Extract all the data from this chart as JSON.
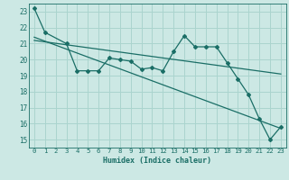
{
  "xlabel": "Humidex (Indice chaleur)",
  "bg_color": "#cce8e4",
  "grid_color": "#aad4ce",
  "line_color": "#1a6e66",
  "xlim": [
    -0.5,
    23.5
  ],
  "ylim": [
    14.5,
    23.5
  ],
  "yticks": [
    15,
    16,
    17,
    18,
    19,
    20,
    21,
    22,
    23
  ],
  "xticks": [
    0,
    1,
    2,
    3,
    4,
    5,
    6,
    7,
    8,
    9,
    10,
    11,
    12,
    13,
    14,
    15,
    16,
    17,
    18,
    19,
    20,
    21,
    22,
    23
  ],
  "main_x": [
    0,
    1,
    3,
    4,
    5,
    6,
    7,
    8,
    9,
    10,
    11,
    12,
    13,
    14,
    15,
    16,
    17,
    18,
    19,
    20,
    21,
    22,
    23
  ],
  "main_y": [
    23.2,
    21.7,
    21.0,
    19.3,
    19.3,
    19.3,
    20.1,
    20.0,
    19.9,
    19.4,
    19.5,
    19.3,
    20.5,
    21.5,
    20.8,
    20.8,
    20.8,
    19.8,
    18.8,
    17.8,
    16.3,
    15.0,
    15.8
  ],
  "trend1_x": [
    0,
    23
  ],
  "trend1_y": [
    21.2,
    19.1
  ],
  "trend2_x": [
    0,
    23
  ],
  "trend2_y": [
    21.4,
    15.7
  ]
}
